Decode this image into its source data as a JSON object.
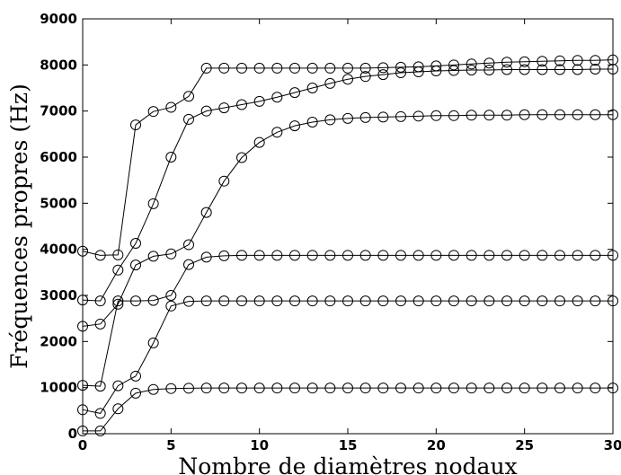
{
  "chart_data": {
    "type": "line",
    "title": "",
    "xlabel": "Nombre de diamètres nodaux",
    "ylabel": "Fréquences propres (Hz)",
    "xlim": [
      0,
      30
    ],
    "ylim": [
      0,
      9000
    ],
    "xticks": [
      0,
      5,
      10,
      15,
      20,
      25,
      30
    ],
    "yticks": [
      0,
      1000,
      2000,
      3000,
      4000,
      5000,
      6000,
      7000,
      8000,
      9000
    ],
    "grid": false,
    "legend": "none",
    "marker": "open-circle",
    "line_color": "#000000",
    "x": [
      0,
      1,
      2,
      3,
      4,
      5,
      6,
      7,
      8,
      9,
      10,
      11,
      12,
      13,
      14,
      15,
      16,
      17,
      18,
      19,
      20,
      21,
      22,
      23,
      24,
      25,
      26,
      27,
      28,
      29,
      30
    ],
    "series": [
      {
        "values": [
          60,
          60,
          540,
          880,
          960,
          980,
          985,
          990,
          990,
          990,
          990,
          990,
          990,
          990,
          990,
          990,
          990,
          990,
          990,
          990,
          990,
          990,
          990,
          990,
          990,
          990,
          990,
          990,
          990,
          990,
          990
        ]
      },
      {
        "values": [
          520,
          440,
          1040,
          1250,
          1970,
          2770,
          2870,
          2880,
          2880,
          2880,
          2880,
          2880,
          2880,
          2880,
          2880,
          2880,
          2880,
          2880,
          2880,
          2880,
          2880,
          2880,
          2880,
          2880,
          2880,
          2880,
          2880,
          2880,
          2880,
          2880,
          2880
        ]
      },
      {
        "values": [
          1050,
          1030,
          2880,
          2880,
          2890,
          3000,
          3670,
          3830,
          3860,
          3870,
          3870,
          3870,
          3870,
          3870,
          3870,
          3870,
          3870,
          3870,
          3870,
          3870,
          3870,
          3870,
          3870,
          3870,
          3870,
          3870,
          3870,
          3870,
          3870,
          3870,
          3870
        ]
      },
      {
        "values": [
          2330,
          2380,
          2810,
          3660,
          3850,
          3900,
          4100,
          4800,
          5480,
          5990,
          6320,
          6540,
          6680,
          6760,
          6810,
          6840,
          6860,
          6870,
          6880,
          6890,
          6900,
          6900,
          6910,
          6910,
          6910,
          6920,
          6920,
          6920,
          6920,
          6920,
          6920
        ]
      },
      {
        "values": [
          2900,
          2880,
          3550,
          4130,
          4990,
          6000,
          6820,
          7000,
          7070,
          7140,
          7210,
          7300,
          7400,
          7500,
          7600,
          7690,
          7750,
          7790,
          7830,
          7850,
          7870,
          7880,
          7890,
          7890,
          7900,
          7900,
          7900,
          7900,
          7900,
          7910,
          7910
        ]
      },
      {
        "values": [
          3960,
          3870,
          3880,
          6700,
          6990,
          7080,
          7320,
          7930,
          7930,
          7930,
          7930,
          7930,
          7930,
          7930,
          7930,
          7930,
          7930,
          7940,
          7950,
          7960,
          7980,
          8000,
          8020,
          8040,
          8060,
          8070,
          8080,
          8090,
          8100,
          8100,
          8110
        ]
      }
    ]
  }
}
